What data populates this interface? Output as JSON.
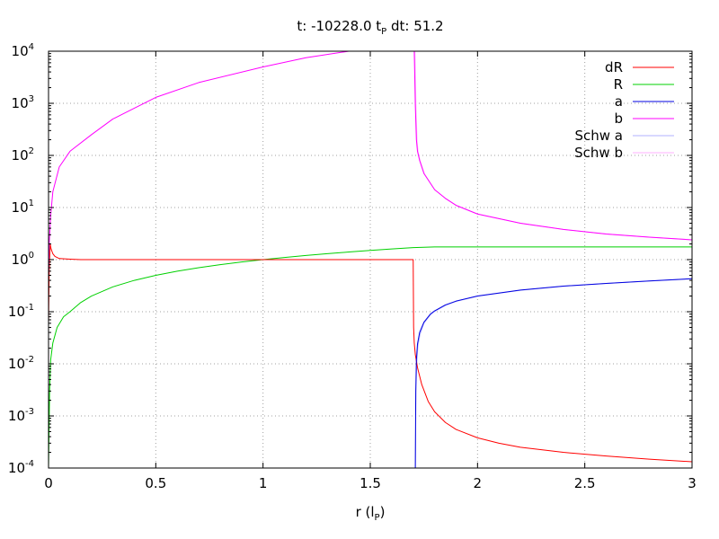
{
  "chart_data": {
    "type": "line",
    "title": {
      "prefix": "t: -10228.0 t",
      "sub": "P",
      "suffix": "  dt: 51.2"
    },
    "xlabel": {
      "prefix": "r (l",
      "sub": "P",
      "suffix": ")"
    },
    "ylabel": "",
    "xlim": [
      0,
      3
    ],
    "ylim": [
      0.0001,
      10000
    ],
    "yscale": "log",
    "grid": true,
    "legend_position": "top-right",
    "x_ticks": [
      "0",
      "0.5",
      "1",
      "1.5",
      "2",
      "2.5",
      "3"
    ],
    "y_ticks": [
      {
        "base": "10",
        "exp": "-4"
      },
      {
        "base": "10",
        "exp": "-3"
      },
      {
        "base": "10",
        "exp": "-2"
      },
      {
        "base": "10",
        "exp": "-1"
      },
      {
        "base": "10",
        "exp": "0"
      },
      {
        "base": "10",
        "exp": "1"
      },
      {
        "base": "10",
        "exp": "2"
      },
      {
        "base": "10",
        "exp": "3"
      },
      {
        "base": "10",
        "exp": "4"
      }
    ],
    "series": [
      {
        "name": "dR",
        "color": "#ff0000",
        "x": [
          0.0,
          0.003,
          0.008,
          0.012,
          0.02,
          0.03,
          0.05,
          0.1,
          0.15,
          0.5,
          1.0,
          1.5,
          1.7,
          1.702,
          1.705,
          1.71,
          1.72,
          1.74,
          1.77,
          1.8,
          1.85,
          1.9,
          2.0,
          2.1,
          2.2,
          2.4,
          2.6,
          2.8,
          3.0
        ],
        "y": [
          0.06,
          0.6,
          2.0,
          1.6,
          1.3,
          1.15,
          1.05,
          1.02,
          1.0,
          1.0,
          1.0,
          1.0,
          1.0,
          0.05,
          0.025,
          0.015,
          0.0085,
          0.004,
          0.0019,
          0.0012,
          0.00075,
          0.00055,
          0.00038,
          0.0003,
          0.00025,
          0.0002,
          0.00017,
          0.000148,
          0.000132
        ]
      },
      {
        "name": "R",
        "color": "#00d000",
        "x": [
          0.0,
          0.002,
          0.005,
          0.01,
          0.02,
          0.04,
          0.07,
          0.1,
          0.15,
          0.2,
          0.3,
          0.4,
          0.5,
          0.6,
          0.7,
          0.8,
          0.9,
          1.0,
          1.1,
          1.2,
          1.3,
          1.4,
          1.5,
          1.6,
          1.7,
          1.8,
          2.0,
          2.5,
          3.0
        ],
        "y": [
          0.0001,
          0.0004,
          0.003,
          0.012,
          0.025,
          0.05,
          0.08,
          0.1,
          0.15,
          0.2,
          0.3,
          0.4,
          0.5,
          0.6,
          0.7,
          0.8,
          0.9,
          1.0,
          1.1,
          1.2,
          1.3,
          1.4,
          1.5,
          1.6,
          1.7,
          1.75,
          1.75,
          1.75,
          1.75
        ]
      },
      {
        "name": "a",
        "color": "#0000e0",
        "x": [
          1.71,
          1.712,
          1.715,
          1.72,
          1.73,
          1.75,
          1.78,
          1.8,
          1.85,
          1.9,
          2.0,
          2.2,
          2.4,
          2.6,
          2.8,
          3.0
        ],
        "y": [
          0.0001,
          0.003,
          0.012,
          0.024,
          0.04,
          0.063,
          0.09,
          0.104,
          0.135,
          0.16,
          0.2,
          0.26,
          0.31,
          0.35,
          0.39,
          0.43
        ]
      },
      {
        "name": "b",
        "color": "#ff00ff",
        "x": [
          0.0,
          0.003,
          0.01,
          0.02,
          0.05,
          0.1,
          0.2,
          0.3,
          0.5,
          0.7,
          1.0,
          1.2,
          1.4
        ],
        "y": [
          0.5,
          2.0,
          7.0,
          20,
          60,
          120,
          250,
          500,
          1300,
          2500,
          5000,
          7500,
          10000
        ]
      },
      {
        "name": "b",
        "color": "#ff00ff",
        "x": [
          1.705,
          1.71,
          1.715,
          1.72,
          1.73,
          1.75,
          1.8,
          1.85,
          1.9,
          2.0,
          2.2,
          2.4,
          2.6,
          2.8,
          3.0
        ],
        "y": [
          10000,
          900,
          200,
          120,
          80,
          45,
          22,
          15,
          11,
          7.5,
          5,
          3.8,
          3.1,
          2.7,
          2.4
        ]
      },
      {
        "name": "Schw a",
        "color": "#b0b0ff",
        "x": [
          1.71,
          1.713,
          1.717,
          1.722,
          1.732,
          1.75,
          1.78,
          1.8,
          1.85,
          1.9,
          2.0,
          2.2,
          2.4,
          2.6,
          2.8,
          3.0
        ],
        "y": [
          0.0001,
          0.003,
          0.011,
          0.022,
          0.037,
          0.06,
          0.087,
          0.101,
          0.132,
          0.158,
          0.198,
          0.258,
          0.308,
          0.349,
          0.388,
          0.428
        ]
      },
      {
        "name": "Schw b",
        "color": "#ffb0ff",
        "x": [
          1.708,
          1.713,
          1.718,
          1.723,
          1.733,
          1.753,
          1.8,
          1.85,
          1.9,
          2.0,
          2.2,
          2.4,
          2.6,
          2.8,
          3.0
        ],
        "y": [
          10000,
          800,
          190,
          115,
          78,
          44,
          22,
          15,
          11,
          7.5,
          5,
          3.8,
          3.1,
          2.7,
          2.4
        ]
      }
    ],
    "legend": [
      {
        "name": "dR",
        "color": "#ff0000"
      },
      {
        "name": "R",
        "color": "#00d000"
      },
      {
        "name": "a",
        "color": "#0000e0"
      },
      {
        "name": "b",
        "color": "#ff00ff"
      },
      {
        "name": "Schw a",
        "color": "#b0b0ff"
      },
      {
        "name": "Schw b",
        "color": "#ffb0ff"
      }
    ]
  }
}
